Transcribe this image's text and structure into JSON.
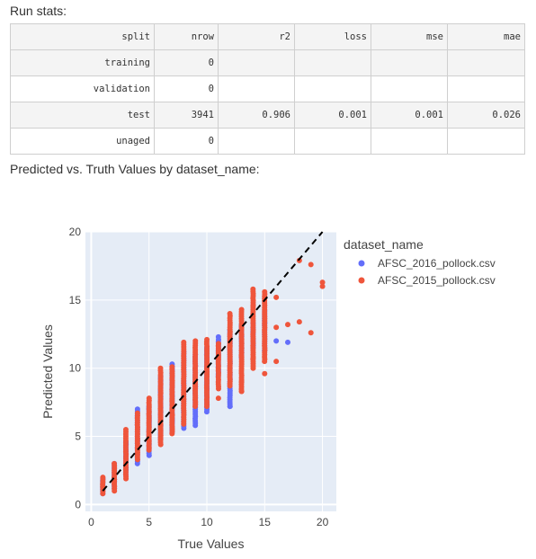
{
  "run_stats": {
    "title": "Run stats:",
    "headers": [
      "split",
      "nrow",
      "r2",
      "loss",
      "mse",
      "mae"
    ],
    "rows": [
      [
        "training",
        "0",
        "",
        "",
        "",
        ""
      ],
      [
        "validation",
        "0",
        "",
        "",
        "",
        ""
      ],
      [
        "test",
        "3941",
        "0.906",
        "0.001",
        "0.001",
        "0.026"
      ],
      [
        "unaged",
        "0",
        "",
        "",
        "",
        ""
      ]
    ]
  },
  "chart_title": "Predicted vs. Truth Values by dataset_name:",
  "chart_data": {
    "type": "scatter",
    "xlabel": "True Values",
    "ylabel": "Predicted Values",
    "xlim": [
      -0.5,
      21.2
    ],
    "ylim": [
      -0.5,
      20
    ],
    "x_ticks": [
      0,
      5,
      10,
      15,
      20
    ],
    "y_ticks": [
      0,
      5,
      10,
      15,
      20
    ],
    "grid": true,
    "legend_title": "dataset_name",
    "legend_position": "right",
    "reference_line": {
      "style": "dashed",
      "color": "#000000",
      "from": [
        1,
        1
      ],
      "to": [
        20,
        20
      ]
    },
    "series": [
      {
        "name": "AFSC_2016_pollock.csv",
        "color": "#636efa",
        "ranges": [
          {
            "x": 1,
            "y": [
              0.8,
              1.9
            ]
          },
          {
            "x": 2,
            "y": [
              1.2,
              3.0
            ]
          },
          {
            "x": 3,
            "y": [
              2.2,
              4.6
            ]
          },
          {
            "x": 4,
            "y": [
              3.0,
              7.0
            ]
          },
          {
            "x": 5,
            "y": [
              3.6,
              7.2
            ]
          },
          {
            "x": 6,
            "y": [
              4.8,
              9.4
            ]
          },
          {
            "x": 7,
            "y": [
              5.3,
              10.3
            ]
          },
          {
            "x": 8,
            "y": [
              5.6,
              11.2
            ]
          },
          {
            "x": 9,
            "y": [
              5.8,
              11.0
            ]
          },
          {
            "x": 10,
            "y": [
              6.8,
              11.5
            ]
          },
          {
            "x": 11,
            "y": [
              9.4,
              12.1
            ]
          },
          {
            "x": 12,
            "y": [
              7.2,
              12.8
            ]
          },
          {
            "x": 13,
            "y": [
              10.8,
              13.2
            ]
          },
          {
            "x": 14,
            "y": [
              11.5,
              13.0
            ]
          },
          {
            "x": 15,
            "y": [
              11.3,
              14.0
            ]
          }
        ],
        "points": [
          [
            11,
            12.3
          ],
          [
            15,
            13.3
          ],
          [
            15,
            14.2
          ],
          [
            16,
            12.0
          ],
          [
            17,
            11.9
          ],
          [
            12,
            7.2
          ],
          [
            14,
            13.3
          ],
          [
            15,
            11.3
          ]
        ]
      },
      {
        "name": "AFSC_2015_pollock.csv",
        "color": "#ef553b",
        "ranges": [
          {
            "x": 1,
            "y": [
              0.8,
              2.0
            ]
          },
          {
            "x": 2,
            "y": [
              1.0,
              3.0
            ]
          },
          {
            "x": 3,
            "y": [
              1.9,
              5.5
            ]
          },
          {
            "x": 4,
            "y": [
              3.3,
              6.7
            ]
          },
          {
            "x": 5,
            "y": [
              4.0,
              7.8
            ]
          },
          {
            "x": 6,
            "y": [
              4.4,
              10.0
            ]
          },
          {
            "x": 7,
            "y": [
              5.2,
              10.1
            ]
          },
          {
            "x": 8,
            "y": [
              5.9,
              11.9
            ]
          },
          {
            "x": 9,
            "y": [
              7.2,
              12.0
            ]
          },
          {
            "x": 10,
            "y": [
              7.2,
              12.1
            ]
          },
          {
            "x": 11,
            "y": [
              8.5,
              11.8
            ]
          },
          {
            "x": 12,
            "y": [
              8.7,
              14.0
            ]
          },
          {
            "x": 13,
            "y": [
              8.3,
              14.3
            ]
          },
          {
            "x": 14,
            "y": [
              10.0,
              15.8
            ]
          },
          {
            "x": 15,
            "y": [
              10.5,
              15.6
            ]
          }
        ],
        "points": [
          [
            15,
            9.6
          ],
          [
            16,
            10.5
          ],
          [
            16,
            15.2
          ],
          [
            17,
            13.2
          ],
          [
            18,
            13.4
          ],
          [
            18,
            17.9
          ],
          [
            19,
            17.6
          ],
          [
            19,
            12.6
          ],
          [
            20,
            16.3
          ],
          [
            20,
            16.0
          ],
          [
            13,
            8.3
          ],
          [
            11,
            7.8
          ],
          [
            12,
            11.6
          ],
          [
            14,
            10.7
          ],
          [
            13,
            10.9
          ],
          [
            16,
            13.0
          ],
          [
            14,
            14.6
          ],
          [
            13,
            9.0
          ]
        ]
      }
    ]
  }
}
